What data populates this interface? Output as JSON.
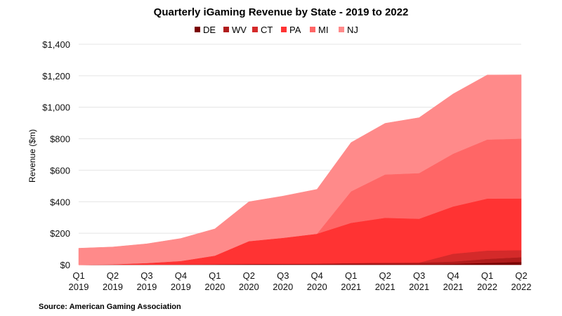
{
  "chart_data": {
    "type": "area",
    "stacked": true,
    "title": "Quarterly iGaming Revenue by State  - 2019 to 2022",
    "ylabel": "Revenue ($m)",
    "xlabel": "",
    "source": "Source: American Gaming Association",
    "ylim": [
      0,
      1400
    ],
    "yticks": [
      0,
      200,
      400,
      600,
      800,
      1000,
      1200,
      1400
    ],
    "ytick_labels": [
      "$0",
      "$200",
      "$400",
      "$600",
      "$800",
      "$1,000",
      "$1,200",
      "$1,400"
    ],
    "grid": true,
    "legend_position": "top",
    "categories": [
      [
        "Q1",
        "2019"
      ],
      [
        "Q2",
        "2019"
      ],
      [
        "Q3",
        "2019"
      ],
      [
        "Q4",
        "2019"
      ],
      [
        "Q1",
        "2020"
      ],
      [
        "Q2",
        "2020"
      ],
      [
        "Q3",
        "2020"
      ],
      [
        "Q4",
        "2020"
      ],
      [
        "Q1",
        "2021"
      ],
      [
        "Q2",
        "2021"
      ],
      [
        "Q3",
        "2021"
      ],
      [
        "Q4",
        "2021"
      ],
      [
        "Q1",
        "2022"
      ],
      [
        "Q2",
        "2022"
      ]
    ],
    "series": [
      {
        "name": "DE",
        "color": "#7a0000",
        "values": [
          0,
          1,
          1,
          2,
          2,
          3,
          3,
          3,
          3,
          3,
          3,
          5,
          12,
          18
        ]
      },
      {
        "name": "WV",
        "color": "#b01c1c",
        "values": [
          0,
          0,
          0,
          0,
          1,
          2,
          3,
          4,
          8,
          10,
          11,
          15,
          25,
          30
        ]
      },
      {
        "name": "CT",
        "color": "#d42a2a",
        "values": [
          0,
          0,
          0,
          0,
          0,
          0,
          0,
          0,
          0,
          0,
          0,
          50,
          53,
          45
        ]
      },
      {
        "name": "PA",
        "color": "#ff3333",
        "values": [
          0,
          2,
          10,
          22,
          55,
          145,
          165,
          190,
          255,
          285,
          278,
          300,
          330,
          328
        ]
      },
      {
        "name": "MI",
        "color": "#ff6666",
        "values": [
          0,
          0,
          0,
          0,
          0,
          0,
          0,
          0,
          200,
          275,
          290,
          335,
          375,
          380
        ]
      },
      {
        "name": "NJ",
        "color": "#ff8a8a",
        "values": [
          105,
          110,
          122,
          143,
          170,
          250,
          265,
          282,
          310,
          325,
          352,
          380,
          410,
          405
        ]
      }
    ]
  }
}
